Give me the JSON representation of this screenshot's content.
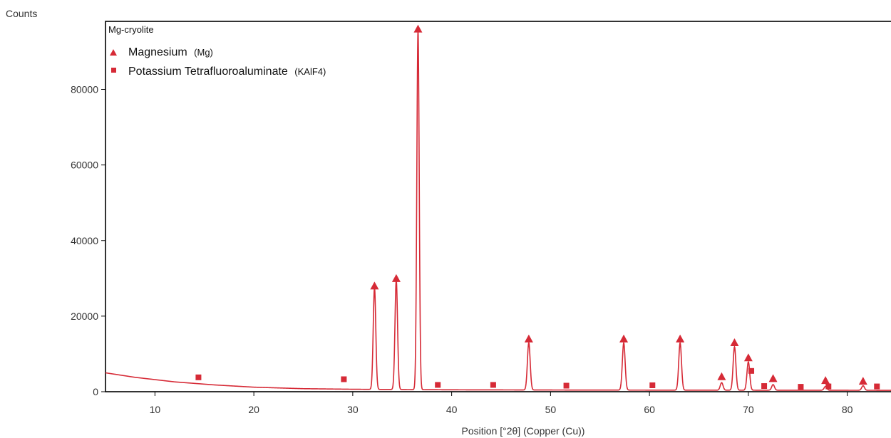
{
  "chart_data": {
    "type": "line",
    "ylabel": "Counts",
    "xlabel": "Position [°2θ] (Copper (Cu))",
    "legend_title": "Mg-cryolite",
    "xlim": [
      5,
      85
    ],
    "ylim": [
      0,
      98000
    ],
    "x_ticks": [
      10,
      20,
      30,
      40,
      50,
      60,
      70,
      80
    ],
    "y_ticks": [
      0,
      20000,
      40000,
      60000,
      80000
    ],
    "series_color": "#d62a36",
    "background": {
      "x": [
        5,
        8,
        12,
        16,
        20,
        25,
        30,
        40,
        50,
        60,
        70,
        80,
        85
      ],
      "y": [
        5000,
        3800,
        2600,
        1800,
        1200,
        800,
        650,
        500,
        450,
        420,
        400,
        380,
        370
      ]
    },
    "peaks": [
      {
        "x": 32.2,
        "y": 27000,
        "w": 0.13
      },
      {
        "x": 34.4,
        "y": 29000,
        "w": 0.13
      },
      {
        "x": 36.6,
        "y": 95000,
        "w": 0.12
      },
      {
        "x": 47.8,
        "y": 12500,
        "w": 0.14
      },
      {
        "x": 57.4,
        "y": 12500,
        "w": 0.14
      },
      {
        "x": 63.1,
        "y": 12500,
        "w": 0.14
      },
      {
        "x": 67.3,
        "y": 2000,
        "w": 0.14
      },
      {
        "x": 68.6,
        "y": 11500,
        "w": 0.14
      },
      {
        "x": 70.0,
        "y": 7500,
        "w": 0.14
      },
      {
        "x": 72.5,
        "y": 1500,
        "w": 0.14
      },
      {
        "x": 77.8,
        "y": 1000,
        "w": 0.14
      },
      {
        "x": 81.6,
        "y": 1200,
        "w": 0.14
      }
    ],
    "series": [
      {
        "name": "Magnesium",
        "formula": "(Mg)",
        "marker": "triangle",
        "points": [
          {
            "x": 32.2,
            "y": 28000
          },
          {
            "x": 34.4,
            "y": 30000
          },
          {
            "x": 36.6,
            "y": 96000
          },
          {
            "x": 47.8,
            "y": 14000
          },
          {
            "x": 57.4,
            "y": 14000
          },
          {
            "x": 63.1,
            "y": 14000
          },
          {
            "x": 67.3,
            "y": 4000
          },
          {
            "x": 68.6,
            "y": 13000
          },
          {
            "x": 70.0,
            "y": 9000
          },
          {
            "x": 72.5,
            "y": 3500
          },
          {
            "x": 77.8,
            "y": 3000
          },
          {
            "x": 81.6,
            "y": 2800
          }
        ]
      },
      {
        "name": "Potassium Tetrafluoroaluminate",
        "formula": "(KAlF4)",
        "marker": "square",
        "points": [
          {
            "x": 14.4,
            "y": 3800
          },
          {
            "x": 29.1,
            "y": 3300
          },
          {
            "x": 38.6,
            "y": 1800
          },
          {
            "x": 44.2,
            "y": 1800
          },
          {
            "x": 51.6,
            "y": 1600
          },
          {
            "x": 60.3,
            "y": 1700
          },
          {
            "x": 70.3,
            "y": 5500
          },
          {
            "x": 71.6,
            "y": 1500
          },
          {
            "x": 75.3,
            "y": 1300
          },
          {
            "x": 78.1,
            "y": 1400
          },
          {
            "x": 83.0,
            "y": 1400
          }
        ]
      }
    ]
  }
}
